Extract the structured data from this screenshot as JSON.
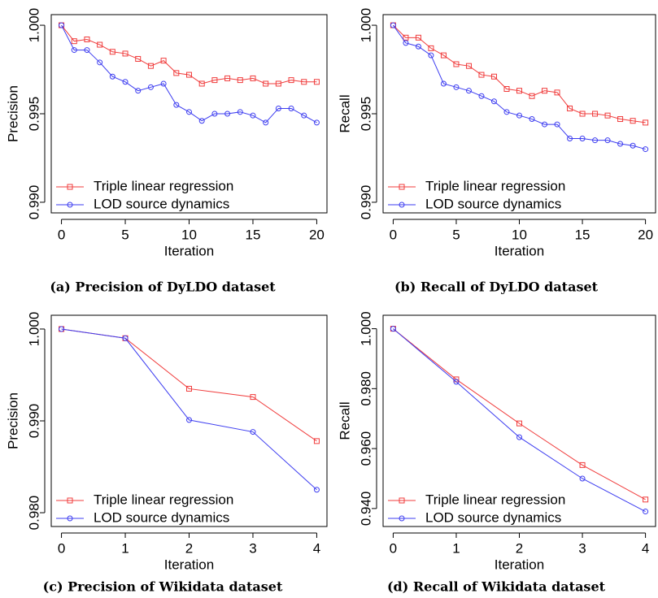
{
  "chart_data": [
    {
      "type": "line",
      "caption": "(a) Precision of DyLDO dataset",
      "xlabel": "Iteration",
      "ylabel": "Precision",
      "x": [
        0,
        1,
        2,
        3,
        4,
        5,
        6,
        7,
        8,
        9,
        10,
        11,
        12,
        13,
        14,
        15,
        16,
        17,
        18,
        19,
        20
      ],
      "xlim": [
        -0.8,
        20.8
      ],
      "xticks": [
        0,
        5,
        10,
        15,
        20
      ],
      "ylim": [
        0.9894,
        1.0006
      ],
      "yticks": [
        {
          "value": 0.99,
          "label": "0.990"
        },
        {
          "value": 0.995,
          "label": "0.995"
        },
        {
          "value": 1.0,
          "label": "1.000"
        }
      ],
      "legend": "bottom-left",
      "series": [
        {
          "name": "Triple linear regression",
          "color": "#f03c3c",
          "marker": "square",
          "values": [
            1.0,
            0.9991,
            0.9992,
            0.9989,
            0.9985,
            0.9984,
            0.9981,
            0.9977,
            0.998,
            0.9973,
            0.9972,
            0.9967,
            0.9969,
            0.997,
            0.9969,
            0.997,
            0.9967,
            0.9967,
            0.9969,
            0.9968,
            0.9968
          ]
        },
        {
          "name": "LOD source dynamics",
          "color": "#3c3cf0",
          "marker": "circle",
          "values": [
            1.0,
            0.9986,
            0.9986,
            0.9979,
            0.9971,
            0.9968,
            0.9963,
            0.9965,
            0.9967,
            0.9955,
            0.9951,
            0.9946,
            0.995,
            0.995,
            0.9951,
            0.9949,
            0.9945,
            0.9953,
            0.9953,
            0.9949,
            0.9945
          ]
        }
      ]
    },
    {
      "type": "line",
      "caption": "(b) Recall of DyLDO dataset",
      "xlabel": "Iteration",
      "ylabel": "Recall",
      "x": [
        0,
        1,
        2,
        3,
        4,
        5,
        6,
        7,
        8,
        9,
        10,
        11,
        12,
        13,
        14,
        15,
        16,
        17,
        18,
        19,
        20
      ],
      "xlim": [
        -0.8,
        20.8
      ],
      "xticks": [
        0,
        5,
        10,
        15,
        20
      ],
      "ylim": [
        0.9894,
        1.0006
      ],
      "yticks": [
        {
          "value": 0.99,
          "label": "0.990"
        },
        {
          "value": 0.995,
          "label": "0.995"
        },
        {
          "value": 1.0,
          "label": "1.000"
        }
      ],
      "legend": "bottom-left",
      "series": [
        {
          "name": "Triple linear regression",
          "color": "#f03c3c",
          "marker": "square",
          "values": [
            1.0,
            0.9993,
            0.9993,
            0.9987,
            0.9983,
            0.9978,
            0.9977,
            0.9972,
            0.9971,
            0.9964,
            0.9963,
            0.996,
            0.9963,
            0.9962,
            0.9953,
            0.995,
            0.995,
            0.9949,
            0.9947,
            0.9946,
            0.9945
          ]
        },
        {
          "name": "LOD source dynamics",
          "color": "#3c3cf0",
          "marker": "circle",
          "values": [
            1.0,
            0.999,
            0.9988,
            0.9983,
            0.9967,
            0.9965,
            0.9963,
            0.996,
            0.9957,
            0.9951,
            0.9949,
            0.9947,
            0.9944,
            0.9944,
            0.9936,
            0.9936,
            0.9935,
            0.9935,
            0.9933,
            0.9932,
            0.993
          ]
        }
      ]
    },
    {
      "type": "line",
      "caption": "(c) Precision of Wikidata dataset",
      "xlabel": "Iteration",
      "ylabel": "Precision",
      "x": [
        0,
        1,
        2,
        3,
        4
      ],
      "xlim": [
        -0.16,
        4.16
      ],
      "xticks": [
        0,
        1,
        2,
        3,
        4
      ],
      "ylim": [
        0.9785,
        1.0015
      ],
      "yticks": [
        {
          "value": 0.98,
          "label": "0.980"
        },
        {
          "value": 0.99,
          "label": "0.990"
        },
        {
          "value": 1.0,
          "label": "1.000"
        }
      ],
      "legend": "bottom-left",
      "series": [
        {
          "name": "Triple linear regression",
          "color": "#f03c3c",
          "marker": "square",
          "values": [
            1.0,
            0.999,
            0.9935,
            0.9926,
            0.9878
          ]
        },
        {
          "name": "LOD source dynamics",
          "color": "#3c3cf0",
          "marker": "circle",
          "values": [
            1.0,
            0.999,
            0.9901,
            0.9888,
            0.9825
          ]
        }
      ]
    },
    {
      "type": "line",
      "caption": "(d) Recall of Wikidata dataset",
      "xlabel": "Iteration",
      "ylabel": "Recall",
      "x": [
        0,
        1,
        2,
        3,
        4
      ],
      "xlim": [
        -0.16,
        4.16
      ],
      "xticks": [
        0,
        1,
        2,
        3,
        4
      ],
      "ylim": [
        0.934,
        1.0045
      ],
      "yticks": [
        {
          "value": 0.94,
          "label": "0.940"
        },
        {
          "value": 0.96,
          "label": "0.960"
        },
        {
          "value": 0.98,
          "label": "0.980"
        },
        {
          "value": 1.0,
          "label": "1.000"
        }
      ],
      "legend": "bottom-left",
      "series": [
        {
          "name": "Triple linear regression",
          "color": "#f03c3c",
          "marker": "square",
          "values": [
            1.0,
            0.9831,
            0.9684,
            0.9545,
            0.943
          ]
        },
        {
          "name": "LOD source dynamics",
          "color": "#3c3cf0",
          "marker": "circle",
          "values": [
            1.0,
            0.9823,
            0.9638,
            0.95,
            0.939
          ]
        }
      ]
    }
  ]
}
